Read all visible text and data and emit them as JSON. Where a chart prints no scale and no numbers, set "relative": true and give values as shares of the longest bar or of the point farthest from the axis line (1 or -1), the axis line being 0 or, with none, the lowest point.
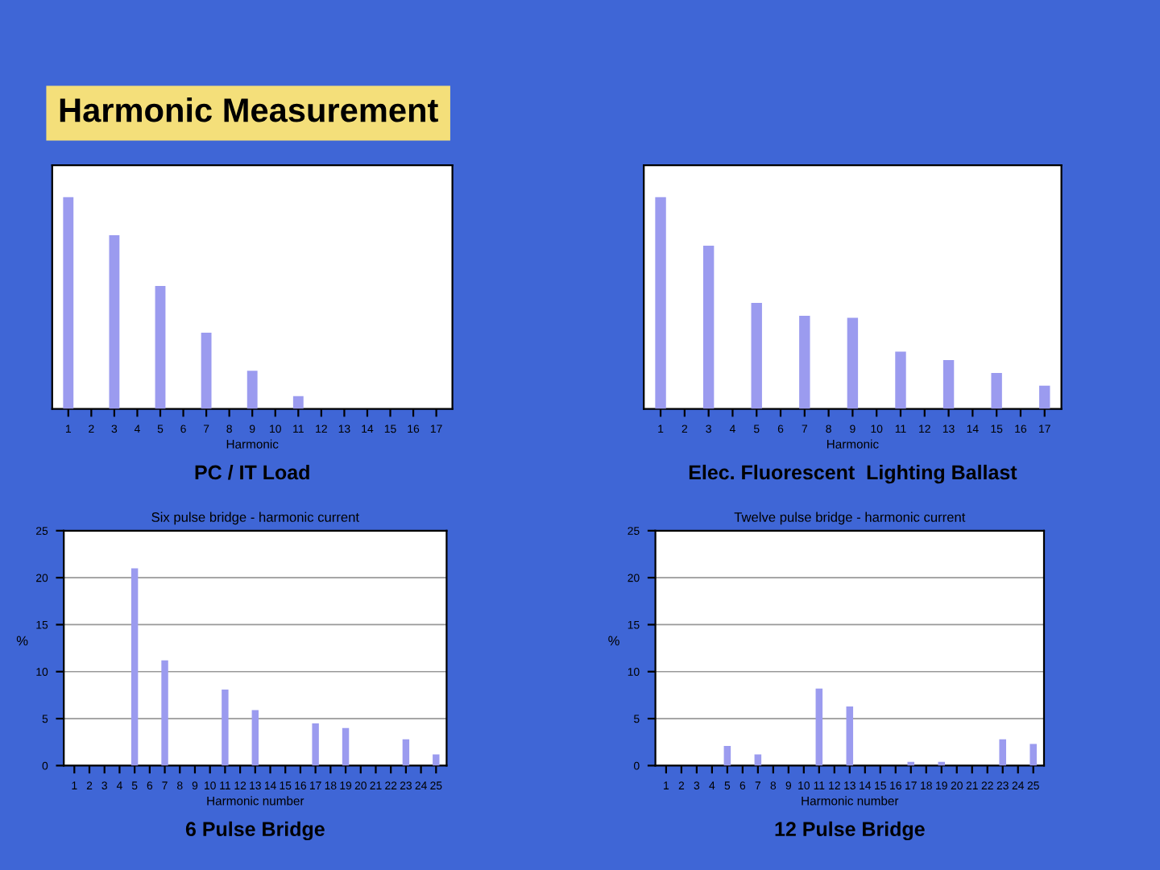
{
  "chart_data": [
    {
      "type": "bar",
      "relative": true,
      "xlabel": "Harmonic",
      "categories": [
        "1",
        "2",
        "3",
        "4",
        "5",
        "6",
        "7",
        "8",
        "9",
        "10",
        "11",
        "12",
        "13",
        "14",
        "15",
        "16",
        "17"
      ],
      "color": "#9b9bef",
      "values": [
        1,
        null,
        0.82,
        null,
        0.58,
        null,
        0.36,
        null,
        0.18,
        null,
        0.06,
        null,
        null,
        null,
        null,
        null,
        null
      ],
      "annotations": [
        "Harmonic Measurement",
        "PC / IT Load"
      ]
    },
    {
      "type": "bar",
      "relative": true,
      "xlabel": "Harmonic",
      "categories": [
        "1",
        "2",
        "3",
        "4",
        "5",
        "6",
        "7",
        "8",
        "9",
        "10",
        "11",
        "12",
        "13",
        "14",
        "15",
        "16",
        "17"
      ],
      "color": "#9b9bef",
      "values": [
        1,
        null,
        0.77,
        null,
        0.5,
        null,
        0.44,
        null,
        0.43,
        null,
        0.27,
        null,
        0.23,
        null,
        0.17,
        null,
        0.11
      ],
      "annotations": [
        "Elec. Fluorescent  Lighting Ballast"
      ]
    },
    {
      "type": "bar",
      "title": "Six pulse bridge - harmonic current",
      "xlabel": "Harmonic number",
      "ylabel": "%",
      "categories": [
        "1",
        "2",
        "3",
        "4",
        "5",
        "6",
        "7",
        "8",
        "9",
        "10",
        "11",
        "12",
        "13",
        "14",
        "15",
        "16",
        "17",
        "18",
        "19",
        "20",
        "21",
        "22",
        "23",
        "24",
        "25"
      ],
      "color": "#9b9bef",
      "values": [
        null,
        null,
        null,
        null,
        21,
        null,
        11.2,
        null,
        null,
        null,
        8.1,
        null,
        5.9,
        null,
        null,
        null,
        4.5,
        null,
        4,
        null,
        null,
        null,
        2.8,
        null,
        1.2
      ],
      "ylim": [
        0,
        25
      ],
      "yticks": [
        0,
        5,
        10,
        15,
        20,
        25
      ],
      "grid": "y",
      "annotations": [
        "6 Pulse Bridge"
      ]
    },
    {
      "type": "bar",
      "title": "Twelve pulse bridge - harmonic current",
      "xlabel": "Harmonic number",
      "ylabel": "%",
      "categories": [
        "1",
        "2",
        "3",
        "4",
        "5",
        "6",
        "7",
        "8",
        "9",
        "10",
        "11",
        "12",
        "13",
        "14",
        "15",
        "16",
        "17",
        "18",
        "19",
        "20",
        "21",
        "22",
        "23",
        "24",
        "25"
      ],
      "color": "#9b9bef",
      "values": [
        null,
        null,
        null,
        null,
        2.1,
        null,
        1.2,
        null,
        null,
        null,
        8.2,
        null,
        6.3,
        null,
        null,
        null,
        0.4,
        null,
        0.4,
        null,
        null,
        null,
        2.8,
        null,
        2.3
      ],
      "ylim": [
        0,
        25
      ],
      "yticks": [
        0,
        5,
        10,
        15,
        20,
        25
      ],
      "grid": "y",
      "annotations": [
        "12 Pulse Bridge"
      ]
    }
  ]
}
